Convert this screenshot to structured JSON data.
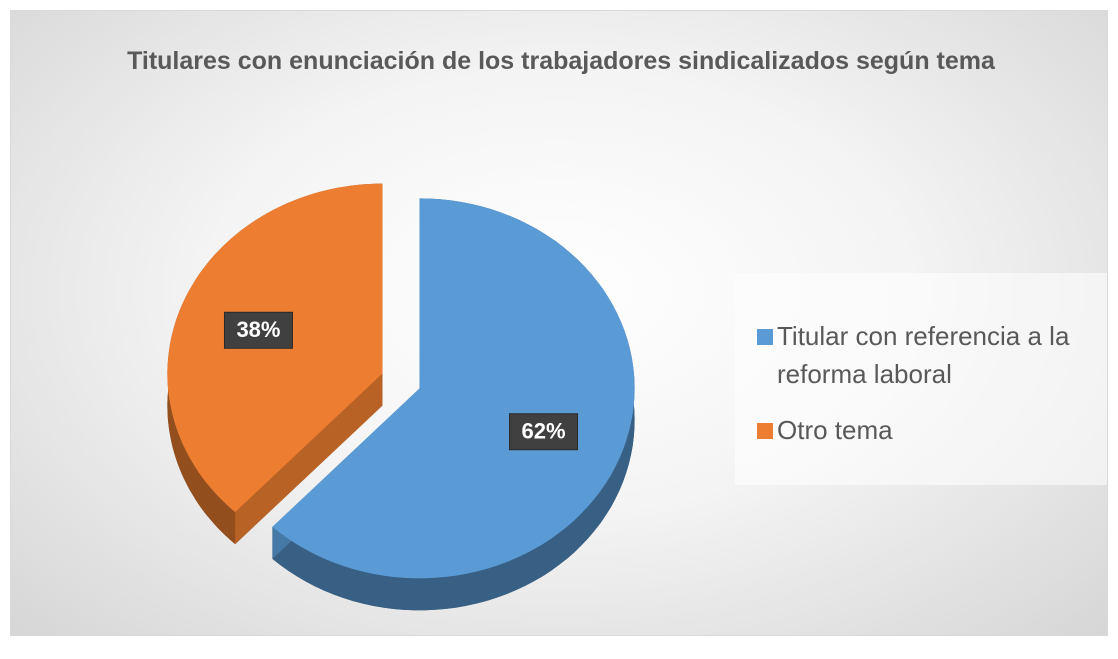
{
  "chart_data": {
    "type": "pie",
    "title": "Titulares con enunciación de los trabajadores sindicalizados según tema",
    "categories": [
      "Titular con referencia a la reforma laboral",
      "Otro tema"
    ],
    "values": [
      62,
      38
    ],
    "value_labels": [
      "62%",
      "38%"
    ],
    "colors": [
      "#5b9bd5",
      "#ed7d31"
    ],
    "legend": "right"
  }
}
